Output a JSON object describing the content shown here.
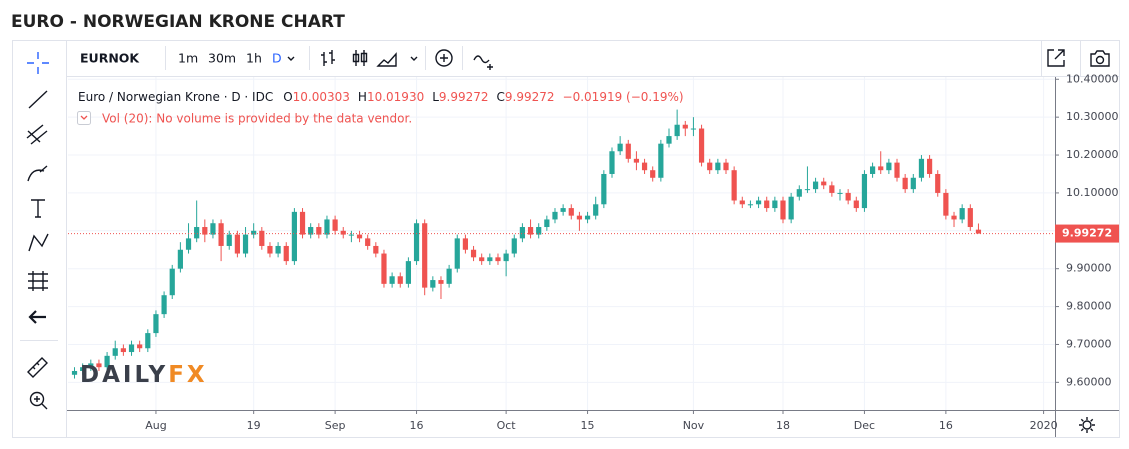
{
  "page": {
    "title": "EURO - NORWEGIAN KRONE CHART",
    "symbol": "EURNOK",
    "intervals": [
      "1m",
      "30m",
      "1h",
      "D"
    ],
    "legend": "Euro / Norwegian Krone · D · IDC",
    "ohlc": [
      {
        "key": "O",
        "value": "10.00303"
      },
      {
        "key": "H",
        "value": "10.01930"
      },
      {
        "key": "L",
        "value": "9.99272"
      },
      {
        "key": "C",
        "value": "9.99272"
      }
    ],
    "change": "−0.01919 (−0.19%)",
    "volume_note": "Vol (20): No volume is provided by the data vendor.",
    "watermark": [
      "DAILY",
      "FX"
    ]
  },
  "chart_data": {
    "type": "candlestick",
    "up_color": "#26a69a",
    "down_color": "#ef5350",
    "grid": true,
    "open": [
      9.62,
      9.63,
      9.64,
      9.65,
      9.64,
      9.67,
      9.69,
      9.68,
      9.7,
      9.69,
      9.73,
      9.78,
      9.83,
      9.9,
      9.95,
      9.98,
      10.01,
      9.99,
      10.02,
      9.96,
      9.99,
      9.94,
      9.99,
      10.0,
      9.96,
      9.94,
      9.96,
      9.92,
      10.05,
      9.99,
      10.01,
      9.99,
      10.03,
      10.0,
      9.99,
      9.99,
      9.98,
      9.96,
      9.94,
      9.86,
      9.88,
      9.86,
      9.92,
      10.02,
      9.85,
      9.87,
      9.86,
      9.9,
      9.98,
      9.95,
      9.93,
      9.92,
      9.93,
      9.92,
      9.94,
      9.98,
      10.01,
      9.99,
      10.01,
      10.03,
      10.05,
      10.06,
      10.04,
      10.03,
      10.04,
      10.07,
      10.15,
      10.21,
      10.23,
      10.19,
      10.18,
      10.16,
      10.14,
      10.23,
      10.25,
      10.28,
      10.27,
      10.27,
      10.18,
      10.16,
      10.18,
      10.16,
      10.08,
      10.07,
      10.07,
      10.08,
      10.06,
      10.08,
      10.03,
      10.09,
      10.11,
      10.11,
      10.13,
      10.12,
      10.1,
      10.1,
      10.08,
      10.06,
      10.15,
      10.17,
      10.16,
      10.18,
      10.14,
      10.11,
      10.14,
      10.19,
      10.15,
      10.1,
      10.04,
      10.03,
      10.06,
      10.00303
    ],
    "high": [
      9.64,
      9.65,
      9.66,
      9.66,
      9.68,
      9.71,
      9.7,
      9.71,
      9.71,
      9.74,
      9.79,
      9.84,
      9.91,
      9.97,
      10.02,
      10.08,
      10.03,
      10.03,
      10.03,
      10.0,
      10.0,
      10.01,
      10.02,
      10.01,
      9.97,
      9.97,
      9.97,
      10.06,
      10.06,
      10.02,
      10.02,
      10.04,
      10.04,
      10.01,
      10.0,
      10.0,
      9.99,
      9.97,
      9.95,
      9.89,
      9.89,
      9.93,
      10.03,
      10.03,
      9.88,
      9.88,
      9.91,
      9.99,
      9.99,
      9.96,
      9.94,
      9.94,
      9.94,
      9.95,
      9.99,
      10.02,
      10.03,
      10.02,
      10.04,
      10.06,
      10.07,
      10.07,
      10.05,
      10.05,
      10.09,
      10.16,
      10.22,
      10.25,
      10.24,
      10.21,
      10.19,
      10.17,
      10.24,
      10.27,
      10.32,
      10.29,
      10.3,
      10.28,
      10.19,
      10.19,
      10.19,
      10.17,
      10.09,
      10.08,
      10.09,
      10.09,
      10.09,
      10.09,
      10.1,
      10.12,
      10.17,
      10.14,
      10.14,
      10.13,
      10.11,
      10.11,
      10.09,
      10.16,
      10.18,
      10.21,
      10.19,
      10.19,
      10.15,
      10.15,
      10.2,
      10.2,
      10.16,
      10.11,
      10.05,
      10.07,
      10.07,
      10.0193
    ],
    "low": [
      9.61,
      9.62,
      9.63,
      9.63,
      9.63,
      9.66,
      9.67,
      9.67,
      9.68,
      9.68,
      9.72,
      9.77,
      9.82,
      9.89,
      9.94,
      9.97,
      9.97,
      9.98,
      9.92,
      9.95,
      9.93,
      9.93,
      9.98,
      9.95,
      9.93,
      9.93,
      9.91,
      9.91,
      9.98,
      9.98,
      9.98,
      9.98,
      9.99,
      9.98,
      9.97,
      9.97,
      9.95,
      9.93,
      9.85,
      9.85,
      9.85,
      9.85,
      9.91,
      9.83,
      9.84,
      9.82,
      9.85,
      9.89,
      9.94,
      9.92,
      9.91,
      9.91,
      9.91,
      9.88,
      9.93,
      9.97,
      9.98,
      9.98,
      10.0,
      10.02,
      10.04,
      10.03,
      10.0,
      10.02,
      10.03,
      10.06,
      10.14,
      10.2,
      10.18,
      10.16,
      10.15,
      10.13,
      10.13,
      10.22,
      10.24,
      10.25,
      10.25,
      10.17,
      10.15,
      10.15,
      10.15,
      10.07,
      10.06,
      10.06,
      10.06,
      10.05,
      10.05,
      10.02,
      10.02,
      10.08,
      10.1,
      10.1,
      10.11,
      10.09,
      10.08,
      10.07,
      10.05,
      10.05,
      10.14,
      10.15,
      10.15,
      10.13,
      10.1,
      10.1,
      10.13,
      10.14,
      10.09,
      10.03,
      10.01,
      10.02,
      10.0,
      9.99272
    ],
    "close": [
      9.63,
      9.64,
      9.65,
      9.64,
      9.67,
      9.69,
      9.68,
      9.7,
      9.69,
      9.73,
      9.78,
      9.83,
      9.9,
      9.95,
      9.98,
      10.01,
      9.99,
      10.02,
      9.96,
      9.99,
      9.94,
      9.99,
      10.0,
      9.96,
      9.94,
      9.96,
      9.92,
      10.05,
      9.99,
      10.01,
      9.99,
      10.03,
      10.0,
      9.99,
      9.99,
      9.98,
      9.96,
      9.94,
      9.86,
      9.88,
      9.86,
      9.92,
      10.02,
      9.85,
      9.87,
      9.86,
      9.9,
      9.98,
      9.95,
      9.93,
      9.92,
      9.93,
      9.92,
      9.94,
      9.98,
      10.01,
      9.99,
      10.01,
      10.03,
      10.05,
      10.06,
      10.04,
      10.03,
      10.04,
      10.07,
      10.15,
      10.21,
      10.23,
      10.19,
      10.18,
      10.16,
      10.14,
      10.23,
      10.25,
      10.28,
      10.27,
      10.27,
      10.18,
      10.16,
      10.18,
      10.16,
      10.08,
      10.07,
      10.07,
      10.08,
      10.06,
      10.08,
      10.03,
      10.09,
      10.11,
      10.11,
      10.13,
      10.12,
      10.1,
      10.1,
      10.08,
      10.06,
      10.15,
      10.17,
      10.16,
      10.18,
      10.14,
      10.11,
      10.14,
      10.19,
      10.15,
      10.1,
      10.04,
      10.03,
      10.06,
      10.01,
      9.99272
    ],
    "xlim": [
      -0.8,
      120.4
    ],
    "xticks": [
      {
        "value": 10,
        "label": "Aug"
      },
      {
        "value": 22,
        "label": "19"
      },
      {
        "value": 32,
        "label": "Sep"
      },
      {
        "value": 42,
        "label": "16"
      },
      {
        "value": 53,
        "label": "Oct"
      },
      {
        "value": 63,
        "label": "15"
      },
      {
        "value": 76,
        "label": "Nov"
      },
      {
        "value": 87,
        "label": "18"
      },
      {
        "value": 97,
        "label": "Dec"
      },
      {
        "value": 107,
        "label": "16"
      },
      {
        "value": 119,
        "label": "2020"
      }
    ],
    "ylim": [
      9.527,
      10.406
    ],
    "yticks": [
      {
        "value": 9.6,
        "label": "9.60000"
      },
      {
        "value": 9.7,
        "label": "9.70000"
      },
      {
        "value": 9.8,
        "label": "9.80000"
      },
      {
        "value": 9.9,
        "label": "9.90000"
      },
      {
        "value": 10.0,
        "label": "10.00000"
      },
      {
        "value": 10.1,
        "label": "10.10000"
      },
      {
        "value": 10.2,
        "label": "10.20000"
      },
      {
        "value": 10.3,
        "label": "10.30000"
      },
      {
        "value": 10.4,
        "label": "10.40000"
      }
    ],
    "current_price": {
      "value": 9.99272,
      "label": "9.99272"
    }
  }
}
